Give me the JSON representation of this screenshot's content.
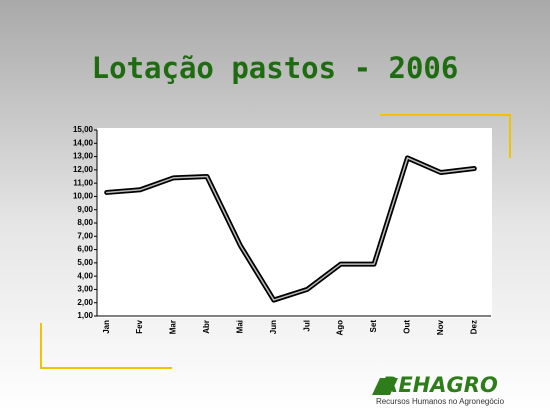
{
  "chart_data": {
    "type": "line",
    "title": "Lotação pastos - 2006",
    "categories": [
      "Jan",
      "Fev",
      "Mar",
      "Abr",
      "Mai",
      "Jun",
      "Jul",
      "Ago",
      "Set",
      "Out",
      "Nov",
      "Dez"
    ],
    "series": [
      {
        "name": "Lotação",
        "color": "#000000",
        "values": [
          10.3,
          10.5,
          11.4,
          11.5,
          6.3,
          2.2,
          3.0,
          4.9,
          4.9,
          12.9,
          11.8,
          12.1
        ]
      }
    ],
    "ylim": [
      1,
      15
    ],
    "yticks": [
      {
        "value": 1,
        "label": "1,00"
      },
      {
        "value": 2,
        "label": "2,00"
      },
      {
        "value": 3,
        "label": "3,00"
      },
      {
        "value": 4,
        "label": "4,00"
      },
      {
        "value": 5,
        "label": "5,00"
      },
      {
        "value": 6,
        "label": "6,00"
      },
      {
        "value": 7,
        "label": "7,00"
      },
      {
        "value": 8,
        "label": "8,00"
      },
      {
        "value": 9,
        "label": "9,00"
      },
      {
        "value": 10,
        "label": "10,00"
      },
      {
        "value": 11,
        "label": "11,00"
      },
      {
        "value": 12,
        "label": "12,00"
      },
      {
        "value": 13,
        "label": "13,00"
      },
      {
        "value": 14,
        "label": "14,00"
      },
      {
        "value": 15,
        "label": "15,00"
      }
    ],
    "grid": false
  },
  "logo": {
    "name": "REHAGRO",
    "tagline": "Recursos Humanos no Agronegócio"
  }
}
